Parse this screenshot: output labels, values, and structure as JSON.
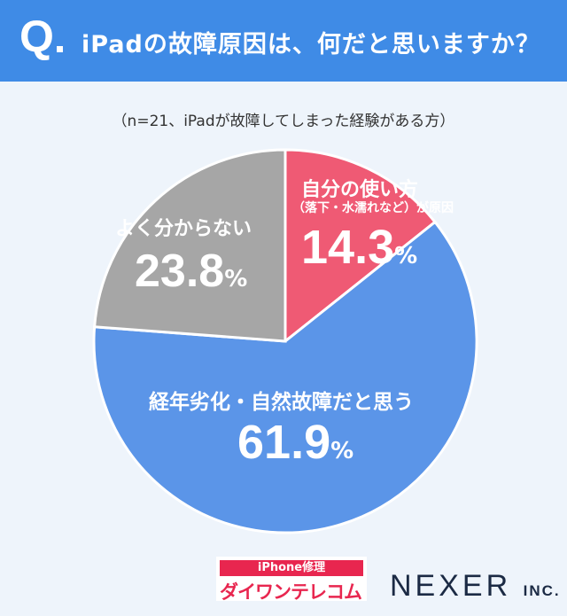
{
  "header": {
    "q": "Q",
    "title": "iPadの故障原因は、何だと思いますか？"
  },
  "subtitle": "（n=21、iPadが故障してしまった経験がある方）",
  "chart_data": {
    "type": "pie",
    "title": "iPadの故障原因は、何だと思いますか？",
    "slices": [
      {
        "label": "自分の使い方",
        "label2": "（落下・水濡れなど）が原因",
        "value": 14.3,
        "display": "14.3",
        "color": "#ef5a74"
      },
      {
        "label": "経年劣化・自然故障だと思う",
        "value": 61.9,
        "display": "61.9",
        "color": "#5b95e8"
      },
      {
        "label": "よく分からない",
        "value": 23.8,
        "display": "23.8",
        "color": "#a6a6a6"
      }
    ],
    "unit": "%",
    "start": "top, clockwise"
  },
  "footer": {
    "sponsor_top": "iPhone修理",
    "sponsor_name": "ダイワンテレコム",
    "company": "NEXER",
    "company_suffix": "INC."
  }
}
